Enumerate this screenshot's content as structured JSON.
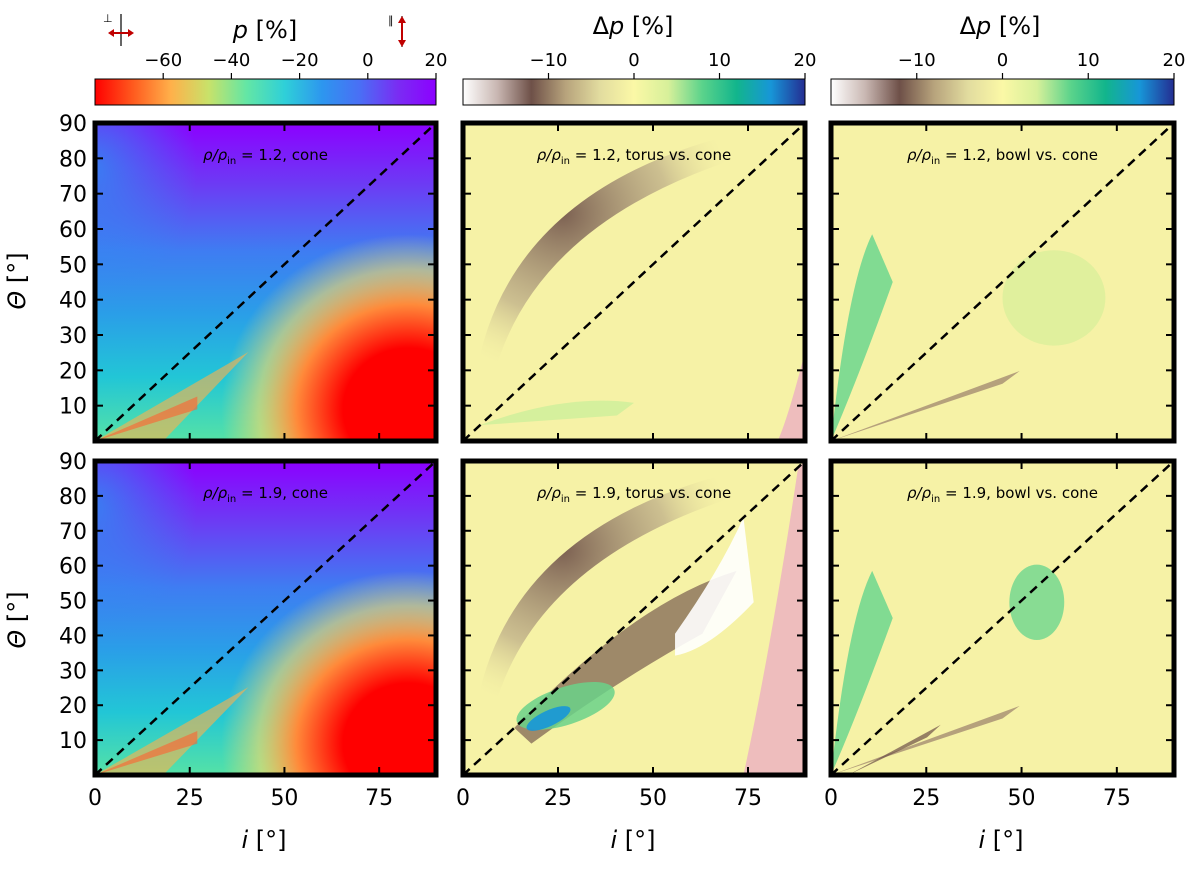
{
  "chart_data": [
    {
      "type": "heatmap",
      "colorbar": {
        "title": "p [%]",
        "ticks": [
          "−60",
          "−40",
          "−20",
          "0",
          "20"
        ],
        "tick_values": [
          -60,
          -40,
          -20,
          0,
          20
        ],
        "range": [
          -80,
          20
        ],
        "colormap": "rainbow"
      },
      "orientation_marks": {
        "perpendicular": "⊥",
        "parallel": "∥"
      },
      "xlabel": "i [°]",
      "ylabel": "Θ [°]",
      "xticks": [
        0,
        25,
        50,
        75
      ],
      "yticks": [
        10,
        20,
        30,
        40,
        50,
        60,
        70,
        80,
        90
      ],
      "xlim": [
        0,
        90
      ],
      "ylim": [
        0,
        90
      ],
      "panels": [
        {
          "annotation": "ρ/ρin = 1.2, cone",
          "ann_main": "ρ/ρ",
          "ann_sub": "in",
          "ann_rest": " = 1.2, cone"
        },
        {
          "annotation": "ρ/ρin = 1.9, cone",
          "ann_main": "ρ/ρ",
          "ann_sub": "in",
          "ann_rest": " = 1.9, cone"
        }
      ],
      "diagonal": "Θ = i (dashed)"
    },
    {
      "type": "heatmap",
      "colorbar": {
        "title": "Δp [%]",
        "ticks": [
          "−10",
          "0",
          "10",
          "20"
        ],
        "tick_values": [
          -10,
          0,
          10,
          20
        ],
        "range": [
          -20,
          20
        ],
        "colormap": "terrain_r"
      },
      "xlabel": "i [°]",
      "xticks": [
        0,
        25,
        50,
        75
      ],
      "xlim": [
        0,
        90
      ],
      "ylim": [
        0,
        90
      ],
      "panels": [
        {
          "annotation": "ρ/ρin = 1.2, torus vs. cone",
          "ann_main": "ρ/ρ",
          "ann_sub": "in",
          "ann_rest": " = 1.2, torus vs. cone"
        },
        {
          "annotation": "ρ/ρin = 1.9, torus vs. cone",
          "ann_main": "ρ/ρ",
          "ann_sub": "in",
          "ann_rest": " = 1.9, torus vs. cone"
        }
      ],
      "diagonal": "Θ = i (dashed)"
    },
    {
      "type": "heatmap",
      "colorbar": {
        "title": "Δp [%]",
        "ticks": [
          "−10",
          "0",
          "10",
          "20"
        ],
        "tick_values": [
          -10,
          0,
          10,
          20
        ],
        "range": [
          -20,
          20
        ],
        "colormap": "terrain_r"
      },
      "xlabel": "i [°]",
      "xticks": [
        0,
        25,
        50,
        75
      ],
      "xlim": [
        0,
        90
      ],
      "ylim": [
        0,
        90
      ],
      "panels": [
        {
          "annotation": "ρ/ρin = 1.2, bowl vs. cone",
          "ann_main": "ρ/ρ",
          "ann_sub": "in",
          "ann_rest": " = 1.2, bowl vs. cone"
        },
        {
          "annotation": "ρ/ρin = 1.9, bowl vs. cone",
          "ann_main": "ρ/ρ",
          "ann_sub": "in",
          "ann_rest": " = 1.9, bowl vs. cone"
        }
      ],
      "diagonal": "Θ = i (dashed)"
    }
  ],
  "colors": {
    "frame": "#000000",
    "masked_region": "#eebdbd",
    "rainbow_stops": [
      "#ff0000",
      "#ff5a1e",
      "#ffb04a",
      "#c8e26a",
      "#63e6a5",
      "#2fd0d8",
      "#2d96ef",
      "#4a6ef5",
      "#7a2cf3",
      "#8c00ff"
    ],
    "diff_stops": [
      "#ffffff",
      "#c9b7b2",
      "#6e5048",
      "#b7a37c",
      "#e2dc9f",
      "#fbf8a6",
      "#d7f09a",
      "#5ad38b",
      "#12b58c",
      "#1796d8",
      "#242d92"
    ]
  }
}
